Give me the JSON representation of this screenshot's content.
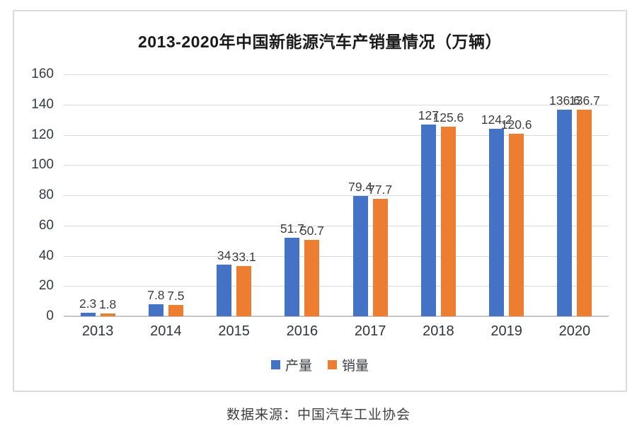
{
  "title": "2013-2020年中国新能源汽车产销量情况（万辆）",
  "source_caption": "数据来源：中国汽车工业协会",
  "legend": {
    "items": [
      {
        "key": "production",
        "label": "产量",
        "color": "#4472C4"
      },
      {
        "key": "sales",
        "label": "销量",
        "color": "#ED7D31"
      }
    ]
  },
  "chart_data": {
    "type": "bar",
    "title": "2013-2020年中国新能源汽车产销量情况（万辆）",
    "categories": [
      "2013",
      "2014",
      "2015",
      "2016",
      "2017",
      "2018",
      "2019",
      "2020"
    ],
    "series": [
      {
        "key": "production",
        "name": "产量",
        "color": "#4472C4",
        "values": [
          2.3,
          7.8,
          34,
          51.7,
          79.4,
          127,
          124.2,
          136.6
        ],
        "labels": [
          "2.3",
          "7.8",
          "34",
          "51.7",
          "79.4",
          "127",
          "124.2",
          "136.6"
        ]
      },
      {
        "key": "sales",
        "name": "销量",
        "color": "#ED7D31",
        "values": [
          1.8,
          7.5,
          33.1,
          50.7,
          77.7,
          125.6,
          120.6,
          136.7
        ],
        "labels": [
          "1.8",
          "7.5",
          "33.1",
          "50.7",
          "77.7",
          "125.6",
          "120.6",
          "136.7"
        ]
      }
    ],
    "ylim": [
      0,
      160
    ],
    "yticks": [
      0,
      20,
      40,
      60,
      80,
      100,
      120,
      140,
      160
    ],
    "xlabel": "",
    "ylabel": "",
    "grid": true,
    "data_labels": true,
    "legend_position": "bottom"
  }
}
